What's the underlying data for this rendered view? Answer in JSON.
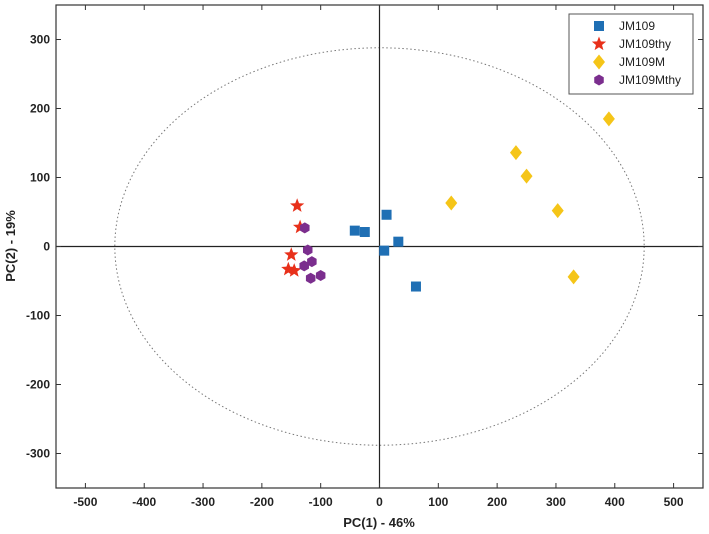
{
  "chart_data": {
    "type": "scatter",
    "xlabel": "PC(1) - 46%",
    "ylabel": "PC(2) - 19%",
    "xlim": [
      -550,
      550
    ],
    "ylim": [
      -350,
      350
    ],
    "xticks": [
      -500,
      -400,
      -300,
      -200,
      -100,
      0,
      100,
      200,
      300,
      400,
      500
    ],
    "yticks": [
      -300,
      -200,
      -100,
      0,
      100,
      200,
      300
    ],
    "grid": false,
    "zero_lines": true,
    "confidence_ellipse": {
      "center": [
        0,
        0
      ],
      "rx": 450,
      "ry": 288
    },
    "legend_position": "top-right",
    "series": [
      {
        "name": "JM109",
        "marker": "square",
        "color": "#1f6fb4",
        "x": [
          -42,
          -25,
          12,
          32,
          8,
          62
        ],
        "y": [
          23,
          21,
          46,
          7,
          -6,
          -58
        ]
      },
      {
        "name": "JM109thy",
        "marker": "star",
        "color": "#e8301a",
        "x": [
          -140,
          -135,
          -150,
          -155,
          -145
        ],
        "y": [
          59,
          28,
          -12,
          -33,
          -35
        ]
      },
      {
        "name": "JM109M",
        "marker": "diamond",
        "color": "#f5c518",
        "x": [
          390,
          232,
          250,
          122,
          303,
          330
        ],
        "y": [
          185,
          136,
          102,
          63,
          52,
          -44
        ]
      },
      {
        "name": "JM109Mthy",
        "marker": "hexagon",
        "color": "#7b2e8e",
        "x": [
          -127,
          -122,
          -115,
          -128,
          -100,
          -117
        ],
        "y": [
          27,
          -5,
          -22,
          -28,
          -42,
          -46
        ]
      }
    ]
  }
}
